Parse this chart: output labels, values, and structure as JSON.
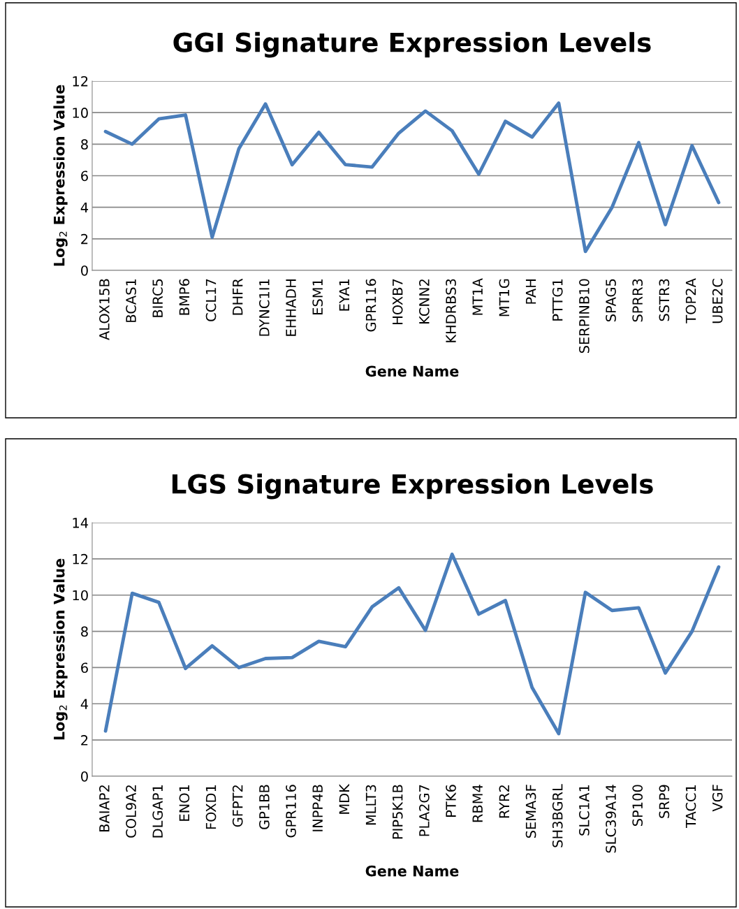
{
  "chart_data": [
    {
      "type": "line",
      "title": "GGI Signature Expression Levels",
      "xlabel": "Gene Name",
      "ylabel": "Log$_{2}$ Expression Value",
      "categories": [
        "ALOX15B",
        "BCAS1",
        "BIRC5",
        "BMP6",
        "CCL17",
        "DHFR",
        "DYNC1I1",
        "EHHADH",
        "ESM1",
        "EYA1",
        "GPR116",
        "HOXB7",
        "KCNN2",
        "KHDRBS3",
        "MT1A",
        "MT1G",
        "PAH",
        "PTTG1",
        "SERPINB10",
        "SPAG5",
        "SPRR3",
        "SSTR3",
        "TOP2A",
        "UBE2C"
      ],
      "series": [
        {
          "color": "#4a7ebb",
          "values": [
            8.8,
            8.0,
            9.6,
            9.85,
            2.1,
            7.7,
            10.55,
            6.7,
            8.75,
            6.7,
            6.55,
            8.7,
            10.1,
            8.85,
            6.1,
            9.45,
            8.45,
            10.6,
            1.2,
            4.0,
            8.1,
            2.9,
            7.9,
            4.3
          ]
        }
      ],
      "ylim": [
        0,
        12
      ],
      "yticks": [
        0,
        2,
        4,
        6,
        8,
        10,
        12
      ],
      "grid": "y",
      "legend": false,
      "marker": "none",
      "line_style": "solid"
    },
    {
      "type": "line",
      "title": "LGS Signature Expression Levels",
      "xlabel": "Gene Name",
      "ylabel": "Log$_{2}$ Expression Value",
      "categories": [
        "BAIAP2",
        "COL9A2",
        "DLGAP1",
        "ENO1",
        "FOXD1",
        "GFPT2",
        "GP1BB",
        "GPR116",
        "INPP4B",
        "MDK",
        "MLLT3",
        "PIP5K1B",
        "PLA2G7",
        "PTK6",
        "RBM4",
        "RYR2",
        "SEMA3F",
        "SH3BGRL",
        "SLC1A1",
        "SLC39A14",
        "SP100",
        "SRP9",
        "TACC1",
        "VGF"
      ],
      "series": [
        {
          "color": "#4a7ebb",
          "values": [
            2.5,
            10.1,
            9.6,
            5.95,
            7.2,
            6.0,
            6.5,
            6.55,
            7.45,
            7.15,
            9.35,
            10.4,
            8.05,
            12.25,
            8.95,
            9.7,
            4.9,
            2.35,
            10.15,
            9.15,
            9.3,
            5.7,
            8.0,
            11.55
          ]
        }
      ],
      "ylim": [
        0,
        14
      ],
      "yticks": [
        0,
        2,
        4,
        6,
        8,
        10,
        12,
        14
      ],
      "grid": "y",
      "legend": false,
      "marker": "none",
      "line_style": "solid"
    }
  ]
}
